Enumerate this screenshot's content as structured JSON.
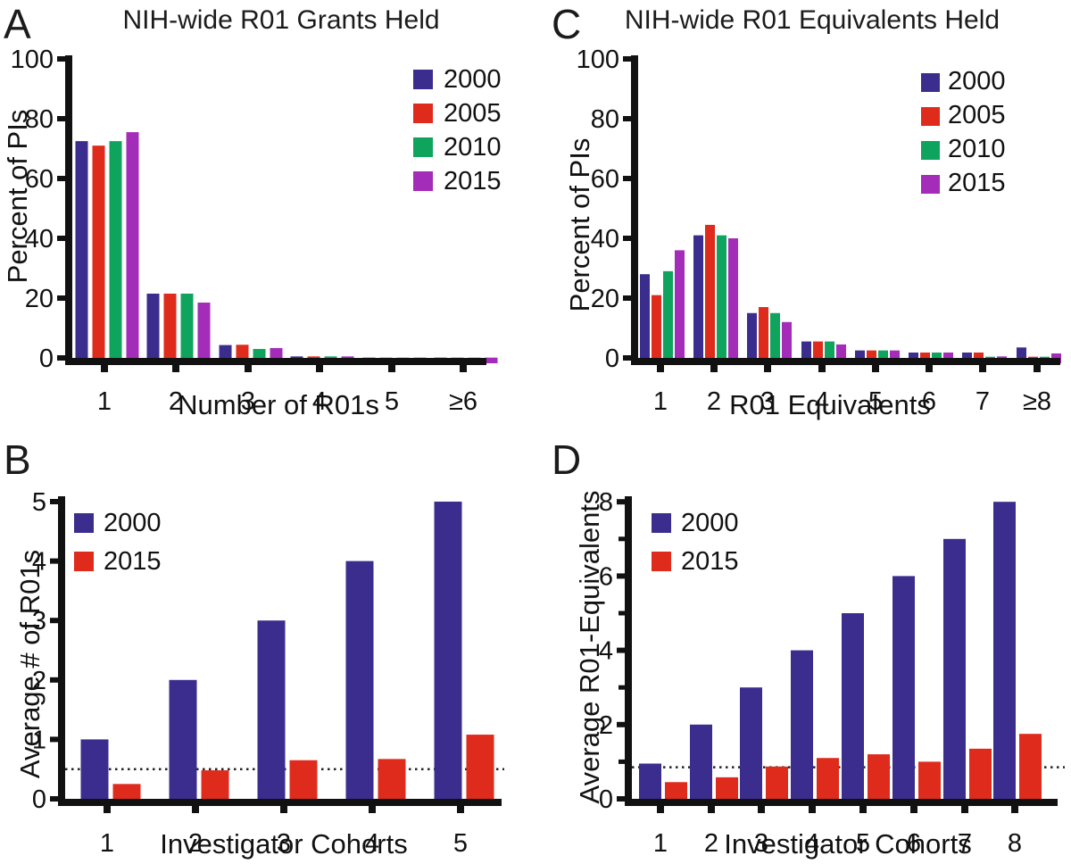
{
  "figure_title": "",
  "accent_colors": {
    "year_2000": "#3B2D8E",
    "year_2005": "#DE2B1C",
    "year_2010": "#0FA45E",
    "year_2015": "#A32CB8",
    "axis": "#111111"
  },
  "chart_data": [
    {
      "panel_label": "A",
      "type": "bar",
      "title": "NIH-wide R01 Grants Held",
      "xlabel": "Number of R01s",
      "ylabel": "Percent of PIs",
      "ylim": [
        0,
        100
      ],
      "yticks": [
        0,
        20,
        40,
        60,
        80,
        100
      ],
      "categories": [
        "1",
        "2",
        "3",
        "4",
        "5",
        "≥6"
      ],
      "grid": false,
      "legend_position": "top-right",
      "series": [
        {
          "name": "2000",
          "color": "#3B2D8E",
          "values": [
            72.5,
            21.5,
            4.3,
            0.5,
            0.1,
            0.1
          ]
        },
        {
          "name": "2005",
          "color": "#DE2B1C",
          "values": [
            71.0,
            21.5,
            4.4,
            0.5,
            0.1,
            0.1
          ]
        },
        {
          "name": "2010",
          "color": "#0FA45E",
          "values": [
            72.5,
            21.5,
            3.0,
            0.5,
            0.1,
            0.1
          ]
        },
        {
          "name": "2015",
          "color": "#A32CB8",
          "values": [
            75.5,
            18.5,
            3.3,
            0.5,
            0.1,
            0.1
          ]
        }
      ]
    },
    {
      "panel_label": "B",
      "type": "bar",
      "title": "",
      "xlabel": "Investigator Cohorts",
      "ylabel": "Average # of R01s",
      "ylim": [
        0,
        5
      ],
      "yticks": [
        0,
        1,
        2,
        3,
        4,
        5
      ],
      "categories": [
        "1",
        "2",
        "3",
        "4",
        "5"
      ],
      "grid": false,
      "legend_position": "top-left",
      "reference_line": 0.5,
      "reference_line_style": "dotted",
      "series": [
        {
          "name": "2000",
          "color": "#3B2D8E",
          "values": [
            1.0,
            2.0,
            3.0,
            4.0,
            5.0
          ]
        },
        {
          "name": "2015",
          "color": "#DE2B1C",
          "values": [
            0.25,
            0.48,
            0.65,
            0.67,
            1.08
          ]
        }
      ]
    },
    {
      "panel_label": "C",
      "type": "bar",
      "title": "NIH-wide R01 Equivalents Held",
      "xlabel": "R01 Equivalents",
      "ylabel": "Percent of PIs",
      "ylim": [
        0,
        100
      ],
      "yticks": [
        0,
        20,
        40,
        60,
        80,
        100
      ],
      "categories": [
        "1",
        "2",
        "3",
        "4",
        "5",
        "6",
        "7",
        "≥8"
      ],
      "grid": false,
      "legend_position": "top-right",
      "series": [
        {
          "name": "2000",
          "color": "#3B2D8E",
          "values": [
            28,
            41,
            15,
            5.5,
            2.5,
            1.8,
            1.8,
            3.5
          ]
        },
        {
          "name": "2005",
          "color": "#DE2B1C",
          "values": [
            21,
            44.5,
            17,
            5.5,
            2.5,
            1.8,
            1.8,
            0.4
          ]
        },
        {
          "name": "2010",
          "color": "#0FA45E",
          "values": [
            29,
            41,
            15,
            5.5,
            2.5,
            1.8,
            0.4,
            0.4
          ]
        },
        {
          "name": "2015",
          "color": "#A32CB8",
          "values": [
            36,
            40,
            12,
            4.5,
            2.5,
            1.8,
            0.5,
            1.5
          ]
        }
      ]
    },
    {
      "panel_label": "D",
      "type": "bar",
      "title": "",
      "xlabel": "Investigator Cohorts",
      "ylabel": "Average R01-Equivalents",
      "ylim": [
        0,
        8
      ],
      "yticks": [
        0,
        2,
        4,
        6,
        8
      ],
      "minor_yticks": [
        1,
        3,
        5,
        7
      ],
      "categories": [
        "1",
        "2",
        "3",
        "4",
        "5",
        "6",
        "7",
        "8"
      ],
      "grid": false,
      "legend_position": "top-left",
      "reference_line": 0.85,
      "reference_line_style": "dotted",
      "series": [
        {
          "name": "2000",
          "color": "#3B2D8E",
          "values": [
            0.95,
            2.0,
            3.0,
            4.0,
            5.0,
            6.0,
            7.0,
            8.0
          ]
        },
        {
          "name": "2015",
          "color": "#DE2B1C",
          "values": [
            0.45,
            0.58,
            0.87,
            1.1,
            1.2,
            1.0,
            1.35,
            1.75
          ]
        }
      ]
    }
  ]
}
